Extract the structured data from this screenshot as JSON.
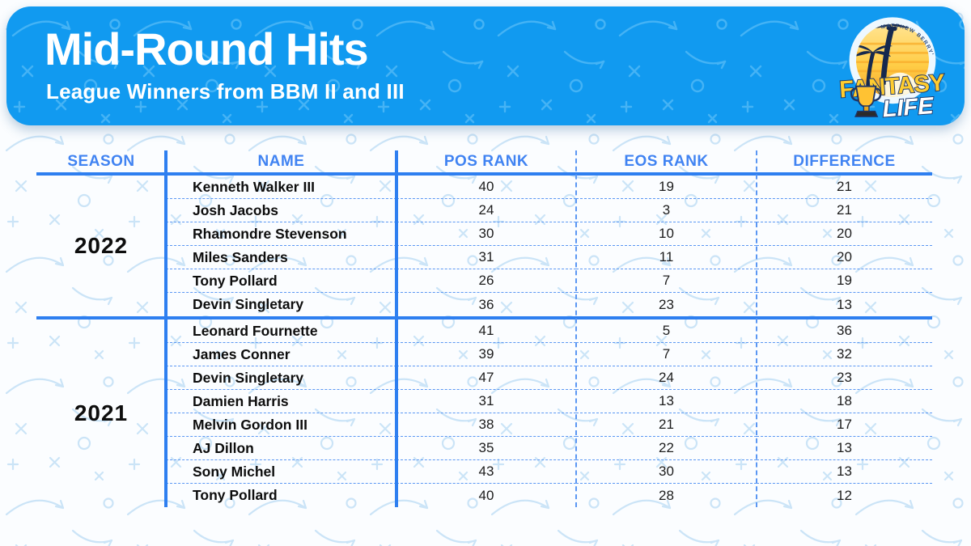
{
  "banner": {
    "title": "Mid-Round Hits",
    "subtitle": "League Winners from BBM II and III"
  },
  "logo": {
    "arc_text": "MATTHEW BERRY'S",
    "brand_top": "FANTASY",
    "brand_bottom": "LIFE"
  },
  "colors": {
    "banner_blue": "#119af0",
    "accent_line_blue": "#2e7ff0",
    "dashed_line_blue": "#5b97f3",
    "header_text_blue": "#4083f2",
    "logo_yellow": "#ffcc2f"
  },
  "table": {
    "columns": [
      "SEASON",
      "NAME",
      "POS RANK",
      "EOS RANK",
      "DIFFERENCE"
    ],
    "groups": [
      {
        "season": "2022",
        "rows": [
          {
            "name": "Kenneth Walker III",
            "pos": "40",
            "eos": "19",
            "diff": "21"
          },
          {
            "name": "Josh Jacobs",
            "pos": "24",
            "eos": "3",
            "diff": "21"
          },
          {
            "name": "Rhamondre Stevenson",
            "pos": "30",
            "eos": "10",
            "diff": "20"
          },
          {
            "name": "Miles Sanders",
            "pos": "31",
            "eos": "11",
            "diff": "20"
          },
          {
            "name": "Tony Pollard",
            "pos": "26",
            "eos": "7",
            "diff": "19"
          },
          {
            "name": "Devin Singletary",
            "pos": "36",
            "eos": "23",
            "diff": "13"
          }
        ]
      },
      {
        "season": "2021",
        "rows": [
          {
            "name": "Leonard Fournette",
            "pos": "41",
            "eos": "5",
            "diff": "36"
          },
          {
            "name": "James Conner",
            "pos": "39",
            "eos": "7",
            "diff": "32"
          },
          {
            "name": "Devin Singletary",
            "pos": "47",
            "eos": "24",
            "diff": "23"
          },
          {
            "name": "Damien Harris",
            "pos": "31",
            "eos": "13",
            "diff": "18"
          },
          {
            "name": "Melvin Gordon III",
            "pos": "38",
            "eos": "21",
            "diff": "17"
          },
          {
            "name": "AJ Dillon",
            "pos": "35",
            "eos": "22",
            "diff": "13"
          },
          {
            "name": "Sony Michel",
            "pos": "43",
            "eos": "30",
            "diff": "13"
          },
          {
            "name": "Tony Pollard",
            "pos": "40",
            "eos": "28",
            "diff": "12"
          }
        ]
      }
    ]
  },
  "chart_data": {
    "type": "table",
    "title": "Mid-Round Hits",
    "subtitle": "League Winners from BBM II and III",
    "columns": [
      "SEASON",
      "NAME",
      "POS RANK",
      "EOS RANK",
      "DIFFERENCE"
    ],
    "rows": [
      [
        "2022",
        "Kenneth Walker III",
        40,
        19,
        21
      ],
      [
        "2022",
        "Josh Jacobs",
        24,
        3,
        21
      ],
      [
        "2022",
        "Rhamondre Stevenson",
        30,
        10,
        20
      ],
      [
        "2022",
        "Miles Sanders",
        31,
        11,
        20
      ],
      [
        "2022",
        "Tony Pollard",
        26,
        7,
        19
      ],
      [
        "2022",
        "Devin Singletary",
        36,
        23,
        13
      ],
      [
        "2021",
        "Leonard Fournette",
        41,
        5,
        36
      ],
      [
        "2021",
        "James Conner",
        39,
        7,
        32
      ],
      [
        "2021",
        "Devin Singletary",
        47,
        24,
        23
      ],
      [
        "2021",
        "Damien Harris",
        31,
        13,
        18
      ],
      [
        "2021",
        "Melvin Gordon III",
        38,
        21,
        17
      ],
      [
        "2021",
        "AJ Dillon",
        35,
        22,
        13
      ],
      [
        "2021",
        "Sony Michel",
        43,
        30,
        13
      ],
      [
        "2021",
        "Tony Pollard",
        40,
        28,
        12
      ]
    ]
  }
}
